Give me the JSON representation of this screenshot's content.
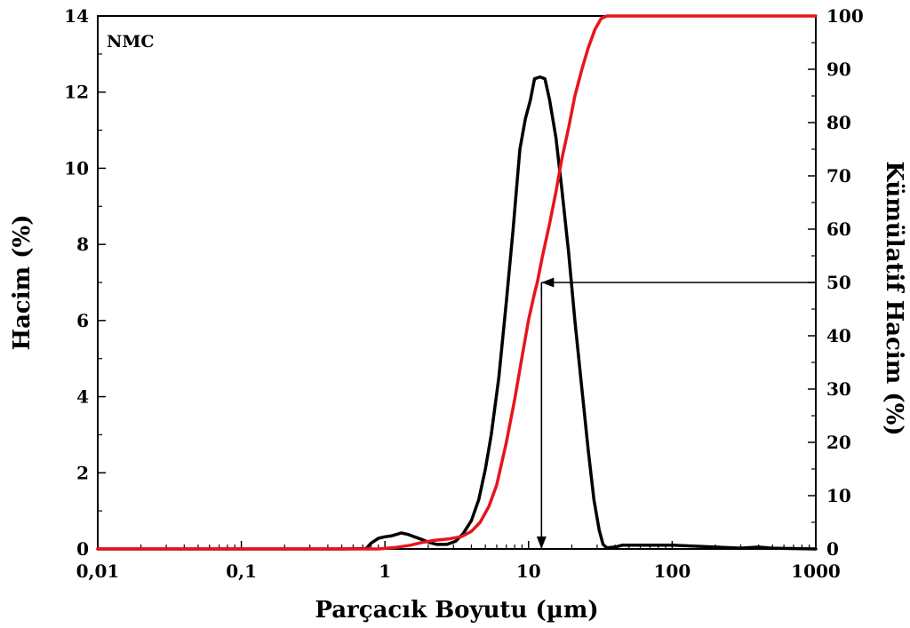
{
  "chart_data": {
    "type": "line",
    "annotation": "NMC",
    "xlabel": "Parçacık Boyutu (µm)",
    "ylabel_left": "Hacim (%)",
    "ylabel_right": "Kümülatif Hacim (%)",
    "x_scale": "log",
    "xlim": [
      0.01,
      1000
    ],
    "ylim_left": [
      0,
      14
    ],
    "ylim_right": [
      0,
      100
    ],
    "x_ticks": [
      0.01,
      0.1,
      1,
      10,
      100,
      1000
    ],
    "x_tick_labels": [
      "0,01",
      "0,1",
      "1",
      "10",
      "100",
      "1000"
    ],
    "y_left_ticks": [
      0,
      2,
      4,
      6,
      8,
      10,
      12,
      14
    ],
    "y_left_tick_labels": [
      "0",
      "2",
      "4",
      "6",
      "8",
      "10",
      "12",
      "14"
    ],
    "y_right_ticks": [
      0,
      10,
      20,
      30,
      40,
      50,
      60,
      70,
      80,
      90,
      100
    ],
    "y_right_tick_labels": [
      "0",
      "10",
      "20",
      "30",
      "40",
      "50",
      "60",
      "70",
      "80",
      "90",
      "100"
    ],
    "grid": false,
    "series": [
      {
        "axis": "left",
        "color": "#000000",
        "points": [
          [
            0.01,
            0
          ],
          [
            0.5,
            0
          ],
          [
            0.74,
            0.01
          ],
          [
            0.8,
            0.15
          ],
          [
            0.9,
            0.28
          ],
          [
            1.0,
            0.32
          ],
          [
            1.1,
            0.34
          ],
          [
            1.2,
            0.38
          ],
          [
            1.3,
            0.42
          ],
          [
            1.45,
            0.38
          ],
          [
            1.6,
            0.32
          ],
          [
            1.8,
            0.25
          ],
          [
            2.0,
            0.18
          ],
          [
            2.3,
            0.12
          ],
          [
            2.7,
            0.12
          ],
          [
            3.1,
            0.2
          ],
          [
            3.5,
            0.4
          ],
          [
            4.0,
            0.75
          ],
          [
            4.5,
            1.3
          ],
          [
            5.0,
            2.1
          ],
          [
            5.5,
            3.0
          ],
          [
            6.2,
            4.5
          ],
          [
            7.0,
            6.5
          ],
          [
            7.8,
            8.4
          ],
          [
            8.7,
            10.5
          ],
          [
            9.5,
            11.3
          ],
          [
            10.3,
            11.8
          ],
          [
            11.0,
            12.35
          ],
          [
            12.0,
            12.4
          ],
          [
            13.0,
            12.35
          ],
          [
            14.0,
            11.8
          ],
          [
            15.5,
            10.8
          ],
          [
            17.0,
            9.5
          ],
          [
            19.0,
            7.8
          ],
          [
            21.0,
            6.0
          ],
          [
            23.5,
            4.2
          ],
          [
            26.0,
            2.6
          ],
          [
            28.5,
            1.3
          ],
          [
            31.0,
            0.5
          ],
          [
            33.0,
            0.12
          ],
          [
            35.0,
            0.03
          ],
          [
            40.0,
            0.05
          ],
          [
            45.0,
            0.1
          ],
          [
            100,
            0.1
          ],
          [
            200,
            0.05
          ],
          [
            300,
            0.02
          ],
          [
            400,
            0.05
          ],
          [
            500,
            0.02
          ],
          [
            1000,
            0
          ]
        ]
      },
      {
        "axis": "right",
        "color": "#e8141b",
        "points": [
          [
            0.01,
            0
          ],
          [
            0.9,
            0
          ],
          [
            1.2,
            0.3
          ],
          [
            1.5,
            0.7
          ],
          [
            1.8,
            1.2
          ],
          [
            2.2,
            1.6
          ],
          [
            2.8,
            1.9
          ],
          [
            3.4,
            2.3
          ],
          [
            4.0,
            3.3
          ],
          [
            4.6,
            5.0
          ],
          [
            5.3,
            8.0
          ],
          [
            6.0,
            12
          ],
          [
            7.0,
            20
          ],
          [
            8.0,
            28
          ],
          [
            9.0,
            36
          ],
          [
            10.0,
            43
          ],
          [
            11.0,
            48
          ],
          [
            11.5,
            50
          ],
          [
            12.5,
            55
          ],
          [
            14.0,
            61
          ],
          [
            15.5,
            67
          ],
          [
            17.0,
            73
          ],
          [
            19.0,
            79
          ],
          [
            21.0,
            85
          ],
          [
            23.5,
            90
          ],
          [
            26.0,
            94
          ],
          [
            29.0,
            97.5
          ],
          [
            32.0,
            99.5
          ],
          [
            35.0,
            100
          ],
          [
            1000,
            100
          ]
        ]
      }
    ],
    "arrows": [
      {
        "from": [
          1000,
          50
        ],
        "to": [
          12.3,
          50
        ],
        "axis": "right"
      },
      {
        "from": [
          12.3,
          50
        ],
        "to": [
          12.3,
          0
        ],
        "axis": "right"
      }
    ]
  }
}
